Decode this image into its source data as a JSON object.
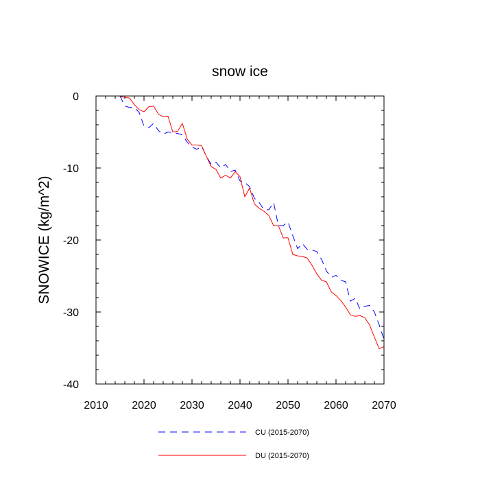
{
  "chart_data": {
    "type": "line",
    "title": "snow ice",
    "xlabel": "",
    "ylabel": "SNOWICE  (kg/m^2)",
    "xlim": [
      2010,
      2070
    ],
    "ylim": [
      -40,
      0
    ],
    "xticks": [
      2010,
      2020,
      2030,
      2040,
      2050,
      2060,
      2070
    ],
    "yticks": [
      0,
      -10,
      -20,
      -30,
      -40
    ],
    "grid": false,
    "legend_position": "bottom-center",
    "series": [
      {
        "name": "CU (2015-2070)",
        "color": "#0000ff",
        "style": "dashed",
        "x": [
          2015,
          2016,
          2017,
          2018,
          2019,
          2020,
          2021,
          2022,
          2023,
          2024,
          2025,
          2026,
          2027,
          2028,
          2029,
          2030,
          2031,
          2032,
          2033,
          2034,
          2035,
          2036,
          2037,
          2038,
          2039,
          2040,
          2041,
          2042,
          2043,
          2044,
          2045,
          2046,
          2047,
          2048,
          2049,
          2050,
          2051,
          2052,
          2053,
          2054,
          2055,
          2056,
          2057,
          2058,
          2059,
          2060,
          2061,
          2062,
          2063,
          2064,
          2065,
          2066,
          2067,
          2068,
          2069,
          2070
        ],
        "values": [
          0,
          -1.4,
          -1.6,
          -1.6,
          -2.3,
          -4.2,
          -4.4,
          -3.8,
          -4.8,
          -5.3,
          -5.0,
          -5.1,
          -5.2,
          -5.4,
          -6.4,
          -7.1,
          -7.4,
          -7.0,
          -8.4,
          -9.5,
          -9.2,
          -10.0,
          -9.5,
          -10.5,
          -10.3,
          -11.8,
          -12.0,
          -12.6,
          -14.2,
          -14.8,
          -15.8,
          -15.8,
          -14.8,
          -18.0,
          -18.0,
          -17.5,
          -19.4,
          -21.2,
          -20.5,
          -21.3,
          -21.4,
          -21.6,
          -22.7,
          -24.3,
          -25.2,
          -24.9,
          -25.6,
          -25.8,
          -28.5,
          -28.1,
          -29.6,
          -29.2,
          -29.1,
          -30.0,
          -31.8,
          -33.8
        ]
      },
      {
        "name": "DU (2015-2070)",
        "color": "#ff0000",
        "style": "solid",
        "x": [
          2015,
          2016,
          2017,
          2018,
          2019,
          2020,
          2021,
          2022,
          2023,
          2024,
          2025,
          2026,
          2027,
          2028,
          2029,
          2030,
          2031,
          2032,
          2033,
          2034,
          2035,
          2036,
          2037,
          2038,
          2039,
          2040,
          2041,
          2042,
          2043,
          2044,
          2045,
          2046,
          2047,
          2048,
          2049,
          2050,
          2051,
          2052,
          2053,
          2054,
          2055,
          2056,
          2057,
          2058,
          2059,
          2060,
          2061,
          2062,
          2063,
          2064,
          2065,
          2066,
          2067,
          2068,
          2069,
          2070
        ],
        "values": [
          0,
          -0.2,
          -0.3,
          -1.2,
          -1.9,
          -2.2,
          -1.5,
          -1.4,
          -2.5,
          -2.9,
          -2.8,
          -5.0,
          -4.9,
          -3.8,
          -6.0,
          -6.8,
          -6.8,
          -6.9,
          -8.4,
          -9.8,
          -10.2,
          -11.4,
          -11.0,
          -11.4,
          -10.5,
          -11.2,
          -14.0,
          -12.8,
          -15.0,
          -15.6,
          -16.0,
          -16.6,
          -18.0,
          -18.0,
          -19.7,
          -19.7,
          -22.0,
          -22.2,
          -22.3,
          -22.5,
          -23.5,
          -24.7,
          -25.6,
          -25.8,
          -27.2,
          -27.7,
          -28.4,
          -29.3,
          -30.4,
          -30.6,
          -30.5,
          -30.8,
          -31.8,
          -33.5,
          -35.1,
          -34.8
        ]
      }
    ]
  }
}
